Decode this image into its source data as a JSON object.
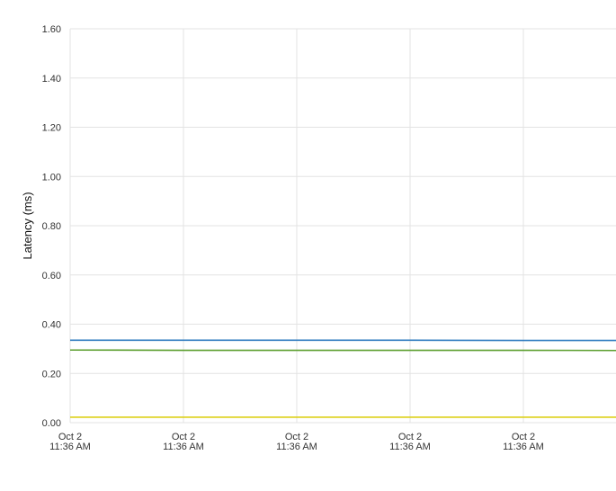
{
  "chart_data": {
    "type": "line",
    "y_label": "Latency (ms)",
    "categories": [
      [
        "Oct 2",
        "11:36 AM"
      ],
      [
        "Oct 2",
        "11:36 AM"
      ],
      [
        "Oct 2",
        "11:36 AM"
      ],
      [
        "Oct 2",
        "11:36 AM"
      ],
      [
        "Oct 2",
        "11:36 AM"
      ],
      null
    ],
    "series": [
      {
        "color": "#2e7bbf",
        "values": [
          0.335,
          0.335,
          0.335,
          0.335,
          0.334,
          0.334
        ]
      },
      {
        "color": "#5b9e2e",
        "values": [
          0.295,
          0.294,
          0.294,
          0.294,
          0.294,
          0.293
        ]
      },
      {
        "color": "#ddd01a",
        "values": [
          0.022,
          0.022,
          0.022,
          0.022,
          0.022,
          0.022
        ]
      }
    ],
    "ylim": [
      0,
      1.6
    ],
    "yticks": [
      {
        "value": 0,
        "label": "0.00"
      },
      {
        "value": 0.2,
        "label": "0.20"
      },
      {
        "value": 0.4,
        "label": "0.40"
      },
      {
        "value": 0.6,
        "label": "0.60"
      },
      {
        "value": 0.8,
        "label": "0.80"
      },
      {
        "value": 1.0,
        "label": "1.00"
      },
      {
        "value": 1.2,
        "label": "1.20"
      },
      {
        "value": 1.4,
        "label": "1.40"
      },
      {
        "value": 1.6,
        "label": "1.60"
      }
    ],
    "grid": true
  }
}
